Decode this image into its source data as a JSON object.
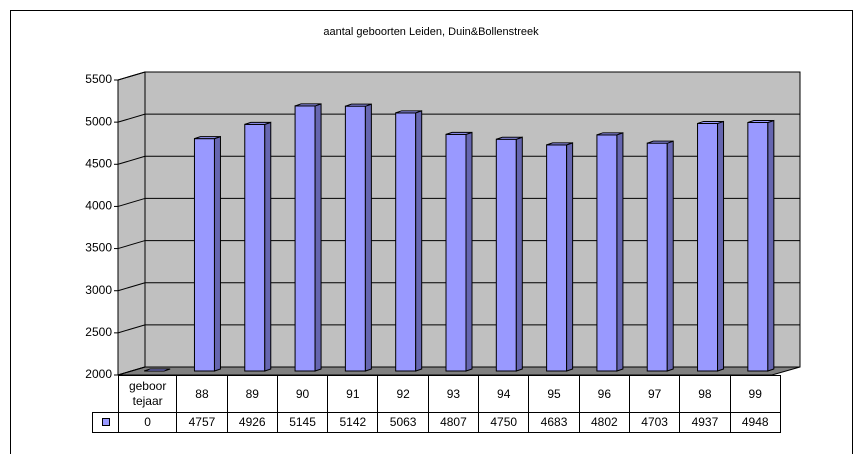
{
  "chart_data": {
    "type": "bar3d",
    "title": "aantal geboorten Leiden, Duin&Bollenstreek",
    "categories": [
      "geboor tejaar",
      "88",
      "89",
      "90",
      "91",
      "92",
      "93",
      "94",
      "95",
      "96",
      "97",
      "98",
      "99"
    ],
    "values": [
      0,
      4757,
      4926,
      5145,
      5142,
      5063,
      4807,
      4750,
      4683,
      4802,
      4703,
      4937,
      4948
    ],
    "color": "#9999ff",
    "ylim": [
      2000,
      5500
    ],
    "yticks": [
      2000,
      2500,
      3000,
      3500,
      4000,
      4500,
      5000,
      5500
    ],
    "grid": true
  }
}
